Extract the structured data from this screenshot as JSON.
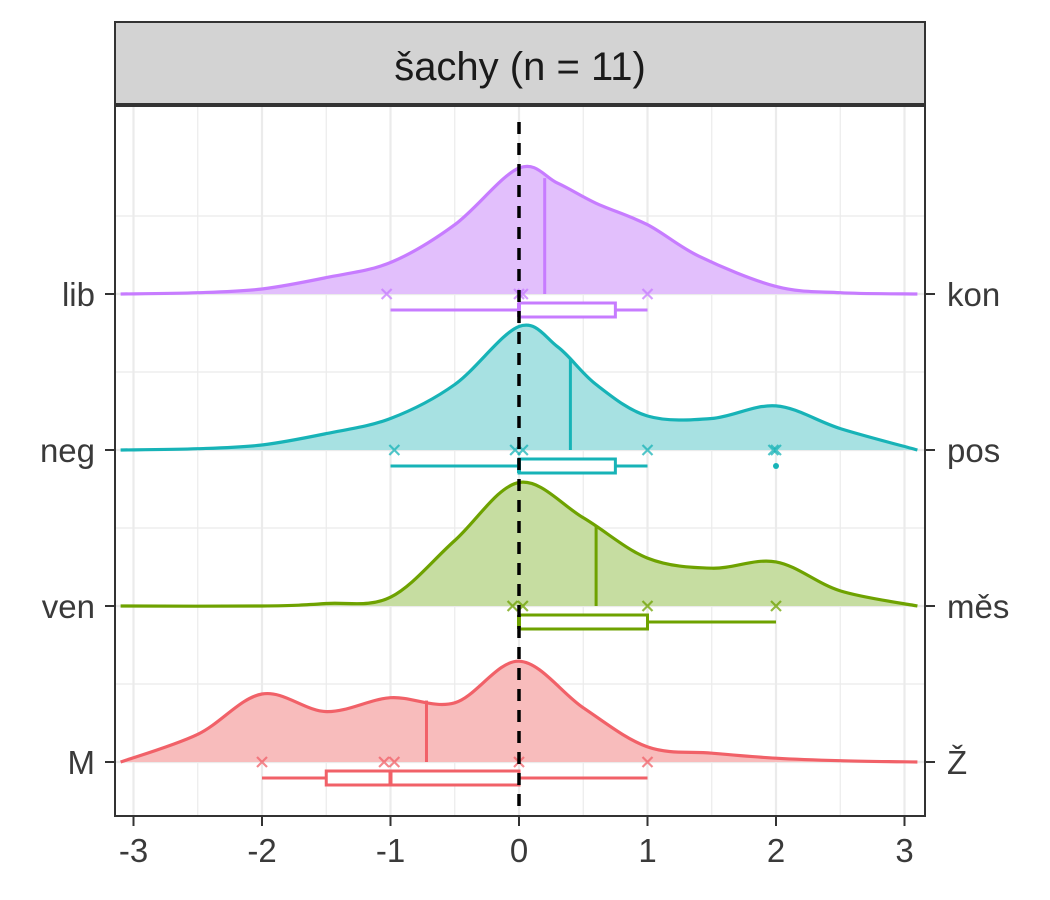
{
  "chart_data": {
    "type": "ridgeline",
    "title": "šachy (n = 11)",
    "x_ticks": [
      "-3",
      "-2",
      "-1",
      "0",
      "1",
      "2",
      "3"
    ],
    "xlim": [
      -3.1,
      3.1
    ],
    "reference_line_x": 0,
    "grid": true,
    "rows": [
      {
        "left_label": "lib",
        "right_label": "kon",
        "color": "#c77cff",
        "fill": "#e2bffc",
        "mean": 0.2,
        "density": [
          [
            -3.1,
            0.0
          ],
          [
            -2.5,
            0.01
          ],
          [
            -2.0,
            0.04
          ],
          [
            -1.5,
            0.13
          ],
          [
            -1.0,
            0.25
          ],
          [
            -0.5,
            0.55
          ],
          [
            0.0,
            1.0
          ],
          [
            0.3,
            0.88
          ],
          [
            0.6,
            0.72
          ],
          [
            1.0,
            0.55
          ],
          [
            1.4,
            0.3
          ],
          [
            2.0,
            0.06
          ],
          [
            2.5,
            0.01
          ],
          [
            3.1,
            0.0
          ]
        ],
        "points": [
          -1.03,
          0.0,
          0.03,
          1.0
        ],
        "boxplot": {
          "min": -1.0,
          "q1": 0.0,
          "median": 0.0,
          "q3": 0.75,
          "max": 1.0,
          "outliers": []
        }
      },
      {
        "left_label": "neg",
        "right_label": "pos",
        "color": "#17b3b7",
        "fill": "#a7e1e2",
        "mean": 0.4,
        "density": [
          [
            -3.1,
            0.0
          ],
          [
            -2.5,
            0.01
          ],
          [
            -2.0,
            0.04
          ],
          [
            -1.5,
            0.13
          ],
          [
            -1.0,
            0.25
          ],
          [
            -0.5,
            0.52
          ],
          [
            0.0,
            0.98
          ],
          [
            0.3,
            0.82
          ],
          [
            0.6,
            0.52
          ],
          [
            1.0,
            0.27
          ],
          [
            1.5,
            0.25
          ],
          [
            2.0,
            0.35
          ],
          [
            2.5,
            0.17
          ],
          [
            3.1,
            0.0
          ]
        ],
        "points": [
          -0.97,
          -0.03,
          0.03,
          1.0,
          1.98,
          2.0
        ],
        "boxplot": {
          "min": -1.0,
          "q1": 0.0,
          "median": 0.0,
          "q3": 0.75,
          "max": 1.0,
          "outliers": [
            2.0
          ]
        }
      },
      {
        "left_label": "ven",
        "right_label": "měs",
        "color": "#6ea200",
        "fill": "#c6dda1",
        "mean": 0.6,
        "density": [
          [
            -3.1,
            0.0
          ],
          [
            -2.0,
            0.0
          ],
          [
            -1.5,
            0.02
          ],
          [
            -1.0,
            0.07
          ],
          [
            -0.5,
            0.52
          ],
          [
            0.0,
            0.98
          ],
          [
            0.5,
            0.7
          ],
          [
            1.0,
            0.38
          ],
          [
            1.5,
            0.3
          ],
          [
            2.0,
            0.35
          ],
          [
            2.5,
            0.12
          ],
          [
            3.1,
            0.0
          ]
        ],
        "points": [
          -0.05,
          0.03,
          1.0,
          2.0
        ],
        "boxplot": {
          "min": 0.0,
          "q1": 0.0,
          "median": 0.0,
          "q3": 1.0,
          "max": 2.0,
          "outliers": []
        }
      },
      {
        "left_label": "M",
        "right_label": "Ž",
        "color": "#f16168",
        "fill": "#f8bcbc",
        "mean": -0.72,
        "density": [
          [
            -3.1,
            0.0
          ],
          [
            -2.5,
            0.22
          ],
          [
            -2.0,
            0.54
          ],
          [
            -1.5,
            0.4
          ],
          [
            -1.0,
            0.51
          ],
          [
            -0.5,
            0.47
          ],
          [
            0.0,
            0.8
          ],
          [
            0.5,
            0.43
          ],
          [
            1.0,
            0.12
          ],
          [
            1.5,
            0.07
          ],
          [
            2.0,
            0.03
          ],
          [
            2.5,
            0.01
          ],
          [
            3.1,
            0.0
          ]
        ],
        "points": [
          -2.0,
          -1.05,
          -0.97,
          0.0,
          1.0
        ],
        "boxplot": {
          "min": -2.0,
          "q1": -1.5,
          "median": -1.0,
          "q3": 0.0,
          "max": 1.0,
          "outliers": []
        }
      }
    ]
  }
}
